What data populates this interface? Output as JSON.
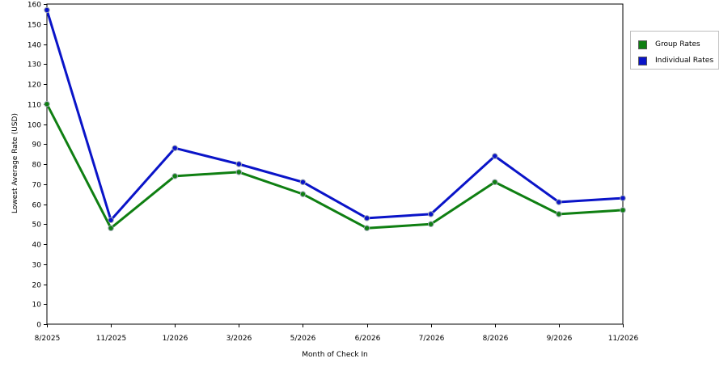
{
  "chart_data": {
    "type": "line",
    "categories": [
      "8/2025",
      "11/2025",
      "1/2026",
      "3/2026",
      "5/2026",
      "6/2026",
      "7/2026",
      "8/2026",
      "9/2026",
      "11/2026"
    ],
    "series": [
      {
        "name": "Group Rates",
        "color": "#0f7f12",
        "values": [
          110,
          48,
          74,
          76,
          65,
          48,
          50,
          71,
          55,
          57
        ]
      },
      {
        "name": "Individual Rates",
        "color": "#0a14c8",
        "values": [
          157,
          52,
          88,
          80,
          71,
          53,
          55,
          84,
          61,
          63
        ]
      }
    ],
    "xlabel": "Month of Check In",
    "ylabel": "Lowest Average Rate (USD)",
    "ylim": [
      0,
      160
    ],
    "yticks": [
      0,
      10,
      20,
      30,
      40,
      50,
      60,
      70,
      80,
      90,
      100,
      110,
      120,
      130,
      140,
      150,
      160
    ],
    "grid": true,
    "legend_position": "top-right"
  }
}
